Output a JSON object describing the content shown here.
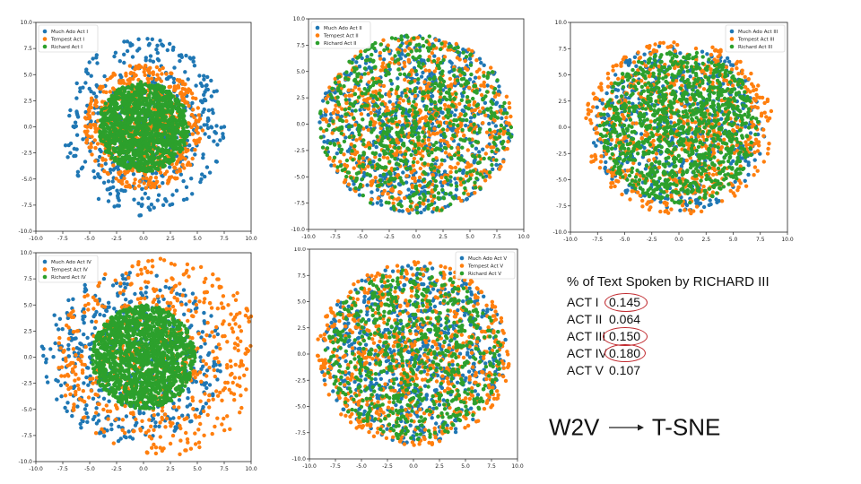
{
  "colors": {
    "series": [
      "#1f77b4",
      "#ff7f0e",
      "#2ca02c"
    ],
    "circle": "#c0282d"
  },
  "chart_data": [
    {
      "type": "scatter",
      "act": "I",
      "xlim": [
        -10,
        10
      ],
      "ylim": [
        -10,
        10
      ],
      "xticks": [
        "-10.0",
        "-7.5",
        "-5.0",
        "-2.5",
        "0.0",
        "2.5",
        "5.0",
        "7.5",
        "10.0"
      ],
      "yticks": [
        "-10.0",
        "-7.5",
        "-5.0",
        "-2.5",
        "0.0",
        "2.5",
        "5.0",
        "7.5",
        "10.0"
      ],
      "legend_position": "top-left",
      "series": [
        {
          "name": "Much Ado Act I",
          "n": 500,
          "spread": [
            7.5,
            8.5
          ],
          "center": [
            0,
            0
          ]
        },
        {
          "name": "Tempest Act I",
          "n": 650,
          "spread": [
            5.5,
            6.0
          ],
          "center": [
            0,
            0
          ]
        },
        {
          "name": "Richard Act I",
          "n": 1300,
          "spread": [
            4.2,
            4.3
          ],
          "center": [
            0,
            0
          ]
        }
      ]
    },
    {
      "type": "scatter",
      "act": "II",
      "xlim": [
        -10,
        10
      ],
      "ylim": [
        -10,
        10
      ],
      "xticks": [
        "-10.0",
        "-7.5",
        "-5.0",
        "-2.5",
        "0.0",
        "2.5",
        "5.0",
        "7.5",
        "10.0"
      ],
      "yticks": [
        "-10.0",
        "-7.5",
        "-5.0",
        "-2.5",
        "0.0",
        "2.5",
        "5.0",
        "7.5",
        "10.0"
      ],
      "legend_position": "top-left",
      "series": [
        {
          "name": "Much Ado Act II",
          "n": 700,
          "spread": [
            9.0,
            8.5
          ],
          "center": [
            0,
            0
          ]
        },
        {
          "name": "Tempest Act II",
          "n": 700,
          "spread": [
            9.0,
            8.5
          ],
          "center": [
            0,
            0
          ]
        },
        {
          "name": "Richard Act II",
          "n": 700,
          "spread": [
            9.0,
            8.5
          ],
          "center": [
            0,
            0
          ]
        }
      ]
    },
    {
      "type": "scatter",
      "act": "III",
      "xlim": [
        -10,
        10
      ],
      "ylim": [
        -10,
        10
      ],
      "xticks": [
        "-10.0",
        "-7.5",
        "-5.0",
        "-2.5",
        "0.0",
        "2.5",
        "5.0",
        "7.5",
        "10.0"
      ],
      "yticks": [
        "-10.0",
        "-7.5",
        "-5.0",
        "-2.5",
        "0.0",
        "2.5",
        "5.0",
        "7.5",
        "10.0"
      ],
      "legend_position": "top-right",
      "series": [
        {
          "name": "Much Ado Act III",
          "n": 550,
          "spread": [
            8.0,
            8.0
          ],
          "center": [
            0,
            0
          ]
        },
        {
          "name": "Tempest Act III",
          "n": 700,
          "spread": [
            8.8,
            8.3
          ],
          "center": [
            0,
            0
          ]
        },
        {
          "name": "Richard Act III",
          "n": 1100,
          "spread": [
            7.3,
            7.3
          ],
          "center": [
            0,
            0
          ]
        }
      ]
    },
    {
      "type": "scatter",
      "act": "IV",
      "xlim": [
        -10,
        10
      ],
      "ylim": [
        -10,
        10
      ],
      "xticks": [
        "-10.0",
        "-7.5",
        "-5.0",
        "-2.5",
        "0.0",
        "2.5",
        "5.0",
        "7.5",
        "10.0"
      ],
      "yticks": [
        "-10.0",
        "-7.5",
        "-5.0",
        "-2.5",
        "0.0",
        "2.5",
        "5.0",
        "7.5",
        "10.0"
      ],
      "legend_position": "top-left",
      "series": [
        {
          "name": "Much Ado Act IV",
          "n": 500,
          "spread": [
            8.5,
            8.2
          ],
          "center": [
            -1,
            0
          ]
        },
        {
          "name": "Tempest Act IV",
          "n": 600,
          "spread": [
            9.5,
            9.5
          ],
          "center": [
            1.5,
            0
          ]
        },
        {
          "name": "Richard Act IV",
          "n": 1500,
          "spread": [
            4.8,
            5.0
          ],
          "center": [
            0,
            0
          ]
        }
      ]
    },
    {
      "type": "scatter",
      "act": "V",
      "xlim": [
        -10,
        10
      ],
      "ylim": [
        -10,
        10
      ],
      "xticks": [
        "-10.0",
        "-7.5",
        "-5.0",
        "-2.5",
        "0.0",
        "2.5",
        "5.0",
        "7.5",
        "10.0"
      ],
      "yticks": [
        "-10.0",
        "-7.5",
        "-5.0",
        "-2.5",
        "0.0",
        "2.5",
        "5.0",
        "7.5",
        "10.0"
      ],
      "legend_position": "top-right",
      "series": [
        {
          "name": "Much Ado Act V",
          "n": 700,
          "spread": [
            9.0,
            8.5
          ],
          "center": [
            0,
            0
          ]
        },
        {
          "name": "Tempest Act V",
          "n": 750,
          "spread": [
            9.3,
            8.8
          ],
          "center": [
            0,
            0
          ]
        },
        {
          "name": "Richard Act V",
          "n": 700,
          "spread": [
            8.5,
            8.2
          ],
          "center": [
            0,
            0
          ]
        }
      ]
    }
  ],
  "summary": {
    "title": "% of Text Spoken by RICHARD III",
    "rows": [
      {
        "label": "ACT I",
        "value": "0.145",
        "circled": true
      },
      {
        "label": "ACT II",
        "value": "0.064",
        "circled": false
      },
      {
        "label": "ACT III",
        "value": "0.150",
        "circled": true
      },
      {
        "label": "ACT IV",
        "value": "0.180",
        "circled": true
      },
      {
        "label": "ACT V",
        "value": "0.107",
        "circled": false
      }
    ]
  },
  "pipeline": {
    "from": "W2V",
    "to": "T-SNE"
  }
}
